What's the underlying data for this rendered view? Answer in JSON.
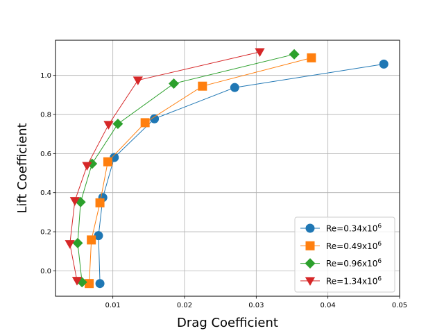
{
  "chart_data": {
    "type": "line",
    "xlabel": "Drag Coefficient",
    "ylabel": "Lift Coefficient",
    "xlim": [
      0.002,
      0.05
    ],
    "ylim": [
      -0.13,
      1.18
    ],
    "xticks": [
      0.01,
      0.02,
      0.03,
      0.04,
      0.05
    ],
    "xtick_labels": [
      "0.01",
      "0.02",
      "0.03",
      "0.04",
      "0.05"
    ],
    "yticks": [
      0.0,
      0.2,
      0.4,
      0.6,
      0.8,
      1.0
    ],
    "ytick_labels": [
      "0.0",
      "0.2",
      "0.4",
      "0.6",
      "0.8",
      "1.0"
    ],
    "grid": true,
    "legend_position": "bottom-right",
    "series": [
      {
        "name_base": "Re=0.34x10",
        "name_exp": "6",
        "color": "#1f77b4",
        "marker": "circle",
        "points": [
          [
            0.0082,
            -0.065
          ],
          [
            0.008,
            0.18
          ],
          [
            0.0086,
            0.375
          ],
          [
            0.0102,
            0.58
          ],
          [
            0.0158,
            0.778
          ],
          [
            0.027,
            0.938
          ],
          [
            0.0478,
            1.058
          ]
        ]
      },
      {
        "name_base": "Re=0.49x10",
        "name_exp": "6",
        "color": "#ff7f0e",
        "marker": "square",
        "points": [
          [
            0.0067,
            -0.065
          ],
          [
            0.007,
            0.158
          ],
          [
            0.0082,
            0.348
          ],
          [
            0.0093,
            0.558
          ],
          [
            0.0145,
            0.758
          ],
          [
            0.0225,
            0.945
          ],
          [
            0.0377,
            1.09
          ]
        ]
      },
      {
        "name_base": "Re=0.96x10",
        "name_exp": "6",
        "color": "#2ca02c",
        "marker": "diamond",
        "points": [
          [
            0.0057,
            -0.058
          ],
          [
            0.0051,
            0.142
          ],
          [
            0.0055,
            0.352
          ],
          [
            0.0071,
            0.548
          ],
          [
            0.0107,
            0.752
          ],
          [
            0.0185,
            0.958
          ],
          [
            0.0353,
            1.108
          ]
        ]
      },
      {
        "name_base": "Re=1.34x10",
        "name_exp": "6",
        "color": "#d62728",
        "marker": "triangle-down",
        "points": [
          [
            0.005,
            -0.05
          ],
          [
            0.004,
            0.138
          ],
          [
            0.0047,
            0.358
          ],
          [
            0.0064,
            0.538
          ],
          [
            0.0094,
            0.748
          ],
          [
            0.0135,
            0.975
          ],
          [
            0.0305,
            1.12
          ]
        ]
      }
    ]
  }
}
